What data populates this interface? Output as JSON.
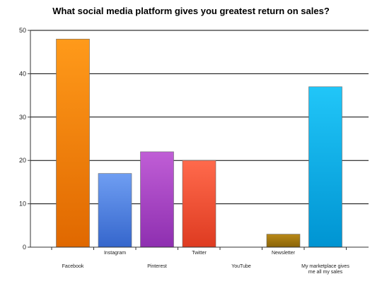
{
  "chart_data": {
    "type": "bar",
    "title": "What social media platform gives you greatest return on sales?",
    "xlabel": "",
    "ylabel": "",
    "ylim": [
      0,
      50
    ],
    "yticks": [
      0,
      10,
      20,
      30,
      40,
      50
    ],
    "grid": true,
    "categories": [
      "Facebook",
      "Instagram",
      "Pinterest",
      "Twitter",
      "YouTube",
      "Newsletter",
      "My marketplace gives me all my sales"
    ],
    "category_label_lines": [
      [
        "Facebook"
      ],
      [
        "Instagram"
      ],
      [
        "Pinterest"
      ],
      [
        "Twitter"
      ],
      [
        "YouTube"
      ],
      [
        "Newsletter"
      ],
      [
        "My marketplace gives",
        "me all my sales"
      ]
    ],
    "values": [
      48,
      17,
      22,
      20,
      0,
      3,
      37
    ],
    "colors": [
      [
        "#ff9a1a",
        "#e06800"
      ],
      [
        "#6f9ef2",
        "#3566cc"
      ],
      [
        "#c05ed6",
        "#8e2fb0"
      ],
      [
        "#ff6a4c",
        "#de3b21"
      ],
      [
        "#888888",
        "#555555"
      ],
      [
        "#b88918",
        "#8a6408"
      ],
      [
        "#21c6f8",
        "#0094d2"
      ]
    ]
  }
}
